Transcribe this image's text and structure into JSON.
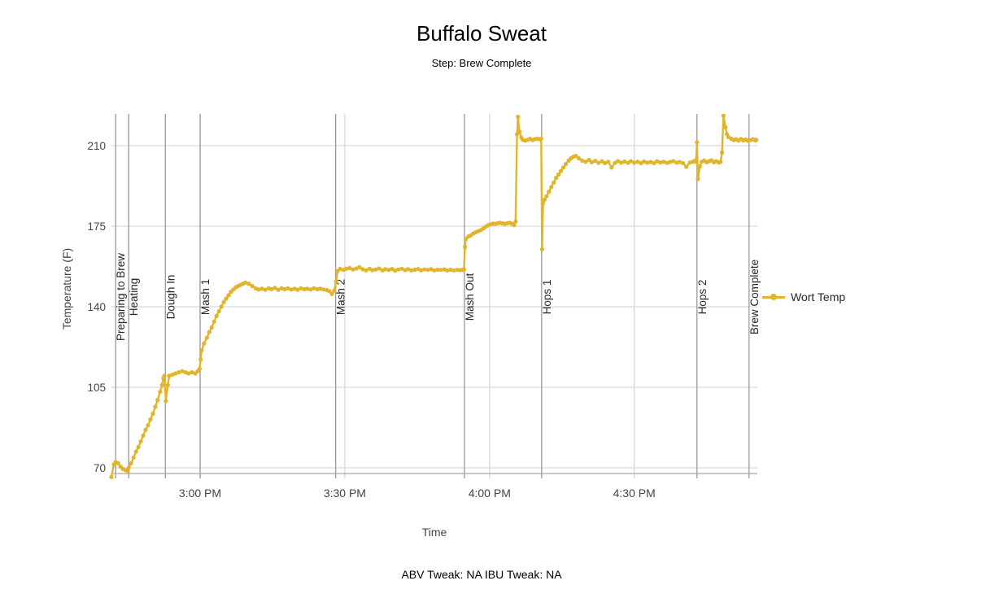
{
  "header": {
    "title": "Buffalo Sweat",
    "subtitle": "Step: Brew Complete"
  },
  "footer": {
    "text": "ABV Tweak: NA IBU Tweak: NA"
  },
  "legend": {
    "items": [
      {
        "label": "Wort Temp",
        "color": "#e2b42b"
      }
    ]
  },
  "colors": {
    "accent": "#e2b42b",
    "grid": "#d9d9d9",
    "event_line": "#999999",
    "axis_line": "#a6a6a6",
    "tick_text": "#444444",
    "event_text": "#262626"
  },
  "chart_data": {
    "type": "line",
    "title": "Buffalo Sweat",
    "subtitle": "Step: Brew Complete",
    "xlabel": "Time",
    "ylabel": "Temperature (F)",
    "x_unit": "minutes after 2:40 PM",
    "grid": true,
    "legend_position": "right-middle",
    "ylim": [
      64,
      224
    ],
    "y_ticks": [
      70,
      105,
      140,
      175,
      210
    ],
    "x_ticks": [
      {
        "label": "3:00 PM",
        "t": 20
      },
      {
        "label": "3:30 PM",
        "t": 50
      },
      {
        "label": "4:00 PM",
        "t": 80
      },
      {
        "label": "4:30 PM",
        "t": 110
      }
    ],
    "events": [
      {
        "label": "Preparing to Brew",
        "t": 2.5
      },
      {
        "label": "Heating",
        "t": 5.2
      },
      {
        "label": "Dough In",
        "t": 12.8
      },
      {
        "label": "Mash 1",
        "t": 20.0
      },
      {
        "label": "Mash 2",
        "t": 48.1
      },
      {
        "label": "Mash Out",
        "t": 74.8
      },
      {
        "label": "Hops 1",
        "t": 90.8
      },
      {
        "label": "Hops 2",
        "t": 123.0
      },
      {
        "label": "Brew Complete",
        "t": 133.8
      }
    ],
    "series": [
      {
        "name": "Wort Temp",
        "color": "#e2b42b",
        "points": [
          [
            1.6,
            66
          ],
          [
            2.1,
            71.5
          ],
          [
            2.5,
            72.5
          ],
          [
            3.0,
            72
          ],
          [
            3.5,
            70.5
          ],
          [
            4.0,
            69.5
          ],
          [
            4.5,
            69
          ],
          [
            5.0,
            68.5
          ],
          [
            5.2,
            70
          ],
          [
            5.7,
            72
          ],
          [
            6.2,
            74.5
          ],
          [
            6.7,
            77
          ],
          [
            7.2,
            79
          ],
          [
            7.7,
            81.5
          ],
          [
            8.2,
            84
          ],
          [
            8.7,
            86.5
          ],
          [
            9.2,
            88.5
          ],
          [
            9.7,
            91
          ],
          [
            10.2,
            93.5
          ],
          [
            10.7,
            96.5
          ],
          [
            11.2,
            99.5
          ],
          [
            11.7,
            103
          ],
          [
            12.1,
            106
          ],
          [
            12.4,
            109
          ],
          [
            12.6,
            110
          ],
          [
            12.9,
            99
          ],
          [
            13.3,
            106
          ],
          [
            13.6,
            110
          ],
          [
            14.3,
            110.5
          ],
          [
            14.9,
            111
          ],
          [
            15.6,
            111.5
          ],
          [
            16.3,
            112
          ],
          [
            17.0,
            111.5
          ],
          [
            17.6,
            111
          ],
          [
            18.3,
            111.5
          ],
          [
            19.0,
            111
          ],
          [
            19.5,
            112
          ],
          [
            19.9,
            113
          ],
          [
            20.1,
            117
          ],
          [
            20.3,
            121
          ],
          [
            20.8,
            124
          ],
          [
            21.4,
            126.5
          ],
          [
            21.9,
            129
          ],
          [
            22.4,
            131
          ],
          [
            22.9,
            133.5
          ],
          [
            23.4,
            136
          ],
          [
            23.9,
            138
          ],
          [
            24.4,
            140
          ],
          [
            24.9,
            142
          ],
          [
            25.4,
            143.5
          ],
          [
            25.9,
            145
          ],
          [
            26.4,
            146.5
          ],
          [
            26.9,
            147.5
          ],
          [
            27.4,
            148.5
          ],
          [
            27.9,
            149
          ],
          [
            28.4,
            149.5
          ],
          [
            28.9,
            150
          ],
          [
            29.4,
            150.5
          ],
          [
            30.1,
            150
          ],
          [
            30.8,
            149
          ],
          [
            31.5,
            148
          ],
          [
            32.1,
            147.5
          ],
          [
            32.8,
            147.8
          ],
          [
            33.5,
            147.4
          ],
          [
            34.2,
            148
          ],
          [
            34.8,
            147.6
          ],
          [
            35.5,
            148.2
          ],
          [
            36.2,
            147.4
          ],
          [
            36.9,
            148
          ],
          [
            37.5,
            147.6
          ],
          [
            38.2,
            148
          ],
          [
            38.9,
            147.5
          ],
          [
            39.6,
            147.8
          ],
          [
            40.2,
            147.4
          ],
          [
            40.9,
            148
          ],
          [
            41.6,
            147.6
          ],
          [
            42.2,
            147.8
          ],
          [
            42.9,
            147.5
          ],
          [
            43.6,
            148
          ],
          [
            44.3,
            147.6
          ],
          [
            44.9,
            147.8
          ],
          [
            45.6,
            147.5
          ],
          [
            46.3,
            147.2
          ],
          [
            46.8,
            146.8
          ],
          [
            47.3,
            145.5
          ],
          [
            47.8,
            147
          ],
          [
            48.2,
            151
          ],
          [
            48.5,
            155.5
          ],
          [
            49.0,
            156.5
          ],
          [
            49.7,
            156
          ],
          [
            50.3,
            156.5
          ],
          [
            51.0,
            156.8
          ],
          [
            51.7,
            156.2
          ],
          [
            52.4,
            156.6
          ],
          [
            53.0,
            157.2
          ],
          [
            53.7,
            156.3
          ],
          [
            54.4,
            155.8
          ],
          [
            55.1,
            156.5
          ],
          [
            55.7,
            155.9
          ],
          [
            56.4,
            156.2
          ],
          [
            57.1,
            156.6
          ],
          [
            57.8,
            155.8
          ],
          [
            58.4,
            156.3
          ],
          [
            59.1,
            156
          ],
          [
            59.8,
            156.4
          ],
          [
            60.4,
            155.7
          ],
          [
            61.1,
            156.2
          ],
          [
            61.8,
            156.5
          ],
          [
            62.5,
            155.9
          ],
          [
            63.1,
            156.3
          ],
          [
            63.8,
            155.8
          ],
          [
            64.5,
            156.1
          ],
          [
            65.2,
            156.4
          ],
          [
            65.8,
            155.8
          ],
          [
            66.5,
            156.2
          ],
          [
            67.2,
            156
          ],
          [
            67.9,
            156.3
          ],
          [
            68.5,
            155.8
          ],
          [
            69.2,
            156.1
          ],
          [
            69.9,
            156
          ],
          [
            70.6,
            156.2
          ],
          [
            71.2,
            155.8
          ],
          [
            71.9,
            156.1
          ],
          [
            72.6,
            155.8
          ],
          [
            73.3,
            156
          ],
          [
            73.9,
            155.9
          ],
          [
            74.4,
            156
          ],
          [
            74.7,
            156.2
          ],
          [
            74.9,
            166
          ],
          [
            75.1,
            169.5
          ],
          [
            75.6,
            170.5
          ],
          [
            76.1,
            171
          ],
          [
            76.6,
            171.8
          ],
          [
            77.1,
            172.3
          ],
          [
            77.6,
            172.8
          ],
          [
            78.2,
            173.3
          ],
          [
            78.7,
            174
          ],
          [
            79.2,
            174.8
          ],
          [
            79.7,
            175.4
          ],
          [
            80.2,
            175.8
          ],
          [
            80.7,
            176.1
          ],
          [
            81.2,
            176
          ],
          [
            81.7,
            176.3
          ],
          [
            82.2,
            176.5
          ],
          [
            82.7,
            176.2
          ],
          [
            83.2,
            176
          ],
          [
            83.7,
            176.3
          ],
          [
            84.2,
            176.5
          ],
          [
            84.7,
            176
          ],
          [
            85.1,
            175.5
          ],
          [
            85.4,
            177
          ],
          [
            85.7,
            215
          ],
          [
            85.9,
            222.5
          ],
          [
            86.2,
            216
          ],
          [
            86.6,
            213.5
          ],
          [
            86.9,
            212.5
          ],
          [
            87.4,
            212.2
          ],
          [
            87.9,
            212.5
          ],
          [
            88.4,
            213
          ],
          [
            88.9,
            212.4
          ],
          [
            89.4,
            212.8
          ],
          [
            89.9,
            213
          ],
          [
            90.4,
            212.8
          ],
          [
            90.7,
            213
          ],
          [
            90.9,
            165
          ],
          [
            91.1,
            185
          ],
          [
            91.4,
            186.5
          ],
          [
            91.8,
            188
          ],
          [
            92.3,
            190
          ],
          [
            92.8,
            192
          ],
          [
            93.3,
            194
          ],
          [
            93.8,
            196
          ],
          [
            94.3,
            197.5
          ],
          [
            94.8,
            199
          ],
          [
            95.3,
            200.5
          ],
          [
            95.8,
            202
          ],
          [
            96.4,
            203.5
          ],
          [
            96.9,
            204.5
          ],
          [
            97.4,
            205.2
          ],
          [
            97.9,
            205.5
          ],
          [
            98.5,
            204.5
          ],
          [
            99.2,
            203.5
          ],
          [
            99.9,
            203
          ],
          [
            100.6,
            203.8
          ],
          [
            101.2,
            202.8
          ],
          [
            101.9,
            203.4
          ],
          [
            102.6,
            202.5
          ],
          [
            103.3,
            203.2
          ],
          [
            103.9,
            202.4
          ],
          [
            104.6,
            203
          ],
          [
            105.3,
            200.5
          ],
          [
            106.0,
            202.5
          ],
          [
            106.6,
            203.3
          ],
          [
            107.3,
            202.6
          ],
          [
            108.0,
            203.1
          ],
          [
            108.7,
            202.5
          ],
          [
            109.3,
            203.2
          ],
          [
            110.0,
            202.6
          ],
          [
            110.7,
            203
          ],
          [
            111.4,
            202.4
          ],
          [
            112.0,
            203.1
          ],
          [
            112.7,
            202.6
          ],
          [
            113.4,
            202.9
          ],
          [
            114.1,
            202.4
          ],
          [
            114.7,
            203.2
          ],
          [
            115.4,
            202.7
          ],
          [
            116.1,
            203
          ],
          [
            116.8,
            202.5
          ],
          [
            117.4,
            202.9
          ],
          [
            118.1,
            203.3
          ],
          [
            118.8,
            202.6
          ],
          [
            119.4,
            202.9
          ],
          [
            120.1,
            202.4
          ],
          [
            120.8,
            200.8
          ],
          [
            121.5,
            202.6
          ],
          [
            122.1,
            203
          ],
          [
            122.5,
            203.4
          ],
          [
            122.8,
            203
          ],
          [
            123.0,
            211.5
          ],
          [
            123.2,
            195.5
          ],
          [
            123.6,
            201
          ],
          [
            124.0,
            203
          ],
          [
            124.5,
            203.5
          ],
          [
            125.0,
            202.8
          ],
          [
            125.5,
            203.2
          ],
          [
            126.0,
            203.6
          ],
          [
            126.5,
            202.8
          ],
          [
            127.0,
            203.2
          ],
          [
            127.5,
            202.7
          ],
          [
            127.9,
            203
          ],
          [
            128.2,
            207
          ],
          [
            128.5,
            223
          ],
          [
            128.9,
            218
          ],
          [
            129.2,
            215
          ],
          [
            129.5,
            213.8
          ],
          [
            130.1,
            213
          ],
          [
            130.6,
            212.4
          ],
          [
            131.1,
            212.8
          ],
          [
            131.6,
            212.2
          ],
          [
            132.1,
            212.9
          ],
          [
            132.6,
            212.3
          ],
          [
            133.1,
            212.6
          ],
          [
            133.6,
            212.1
          ],
          [
            134.1,
            212.4
          ],
          [
            134.6,
            212.8
          ],
          [
            135.1,
            212.3
          ],
          [
            135.3,
            212.5
          ]
        ]
      }
    ]
  }
}
